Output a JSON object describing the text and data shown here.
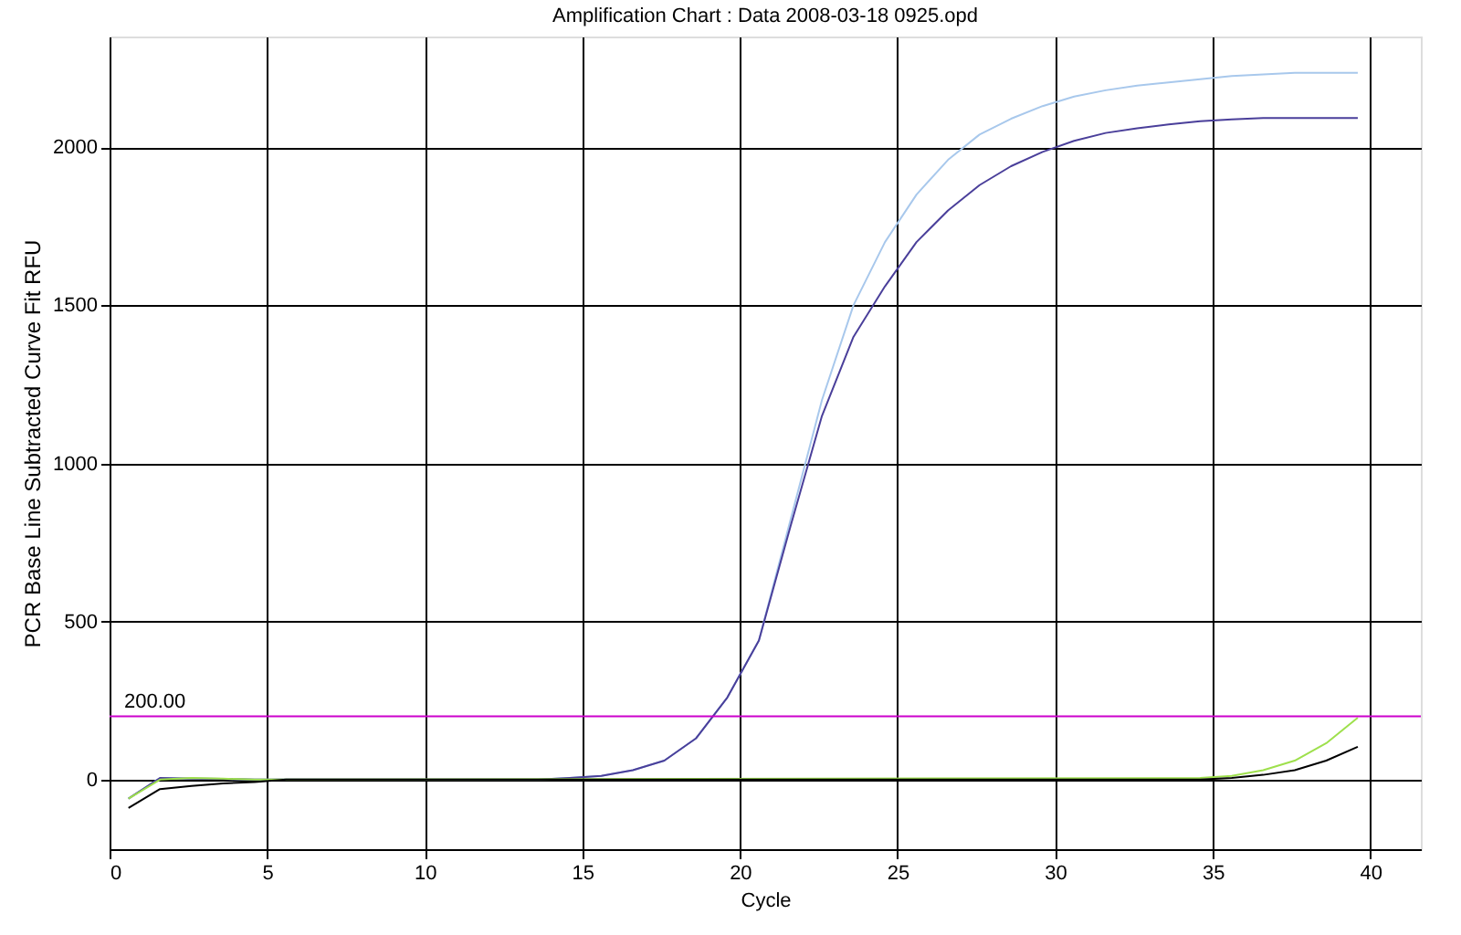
{
  "chart_data": {
    "type": "line",
    "title": "Amplification Chart : Data 2008-03-18 0925.opd",
    "xlabel": "Cycle",
    "ylabel": "PCR Base Line Subtracted Curve Fit RFU",
    "x": [
      0.6,
      1.6,
      2.6,
      3.6,
      4.6,
      5.6,
      6.6,
      7.6,
      8.6,
      9.6,
      10.6,
      11.6,
      12.6,
      13.6,
      14.6,
      15.6,
      16.6,
      17.6,
      18.6,
      19.6,
      20.6,
      21.6,
      22.6,
      23.6,
      24.6,
      25.6,
      26.6,
      27.6,
      28.6,
      29.6,
      30.6,
      31.6,
      32.6,
      33.6,
      34.6,
      35.6,
      36.6,
      37.6,
      38.6,
      39.6
    ],
    "series": [
      {
        "color": "#a8c8ec",
        "values": [
          -60,
          5,
          3,
          2,
          0,
          0,
          0,
          0,
          0,
          0,
          0,
          0,
          0,
          0,
          5,
          12,
          30,
          60,
          130,
          260,
          440,
          820,
          1200,
          1500,
          1700,
          1850,
          1960,
          2040,
          2090,
          2130,
          2160,
          2180,
          2195,
          2205,
          2215,
          2225,
          2230,
          2235,
          2235,
          2235
        ]
      },
      {
        "color": "#4a3f9a",
        "values": [
          -60,
          5,
          3,
          2,
          0,
          0,
          0,
          0,
          0,
          0,
          0,
          0,
          0,
          0,
          5,
          12,
          30,
          60,
          130,
          260,
          440,
          800,
          1150,
          1400,
          1560,
          1700,
          1800,
          1880,
          1940,
          1985,
          2020,
          2045,
          2060,
          2072,
          2082,
          2088,
          2092,
          2092,
          2092,
          2092
        ]
      },
      {
        "color": "#9ee04c",
        "values": [
          -60,
          0,
          5,
          3,
          0,
          0,
          null,
          null,
          null,
          null,
          null,
          null,
          null,
          null,
          null,
          null,
          null,
          null,
          null,
          null,
          null,
          null,
          null,
          null,
          null,
          null,
          null,
          null,
          null,
          null,
          null,
          null,
          null,
          null,
          5,
          12,
          30,
          60,
          115,
          196
        ]
      },
      {
        "color": "#000000",
        "values": [
          -90,
          -30,
          -20,
          -12,
          -8,
          0,
          0,
          0,
          0,
          0,
          0,
          0,
          0,
          0,
          0,
          0,
          0,
          0,
          0,
          0,
          0,
          0,
          0,
          0,
          0,
          0,
          0,
          0,
          0,
          0,
          0,
          0,
          0,
          0,
          0,
          5,
          15,
          30,
          60,
          104
        ]
      }
    ],
    "xlim": [
      0,
      41.6
    ],
    "xticks": [
      0,
      5,
      10,
      15,
      20,
      25,
      30,
      35,
      40
    ],
    "ylim": [
      -220,
      2350
    ],
    "yticks": [
      0,
      500,
      {
        "value": 1000,
        "label": "1000"
      },
      {
        "value": 1500,
        "label": "1500"
      },
      {
        "value": 2000,
        "label": "2000"
      }
    ],
    "ref_lines": [
      {
        "axis": "y",
        "value": 200,
        "label": "200.00",
        "color": "#cc00cc"
      }
    ],
    "grid": true,
    "marker": "none",
    "line_style": "solid"
  }
}
